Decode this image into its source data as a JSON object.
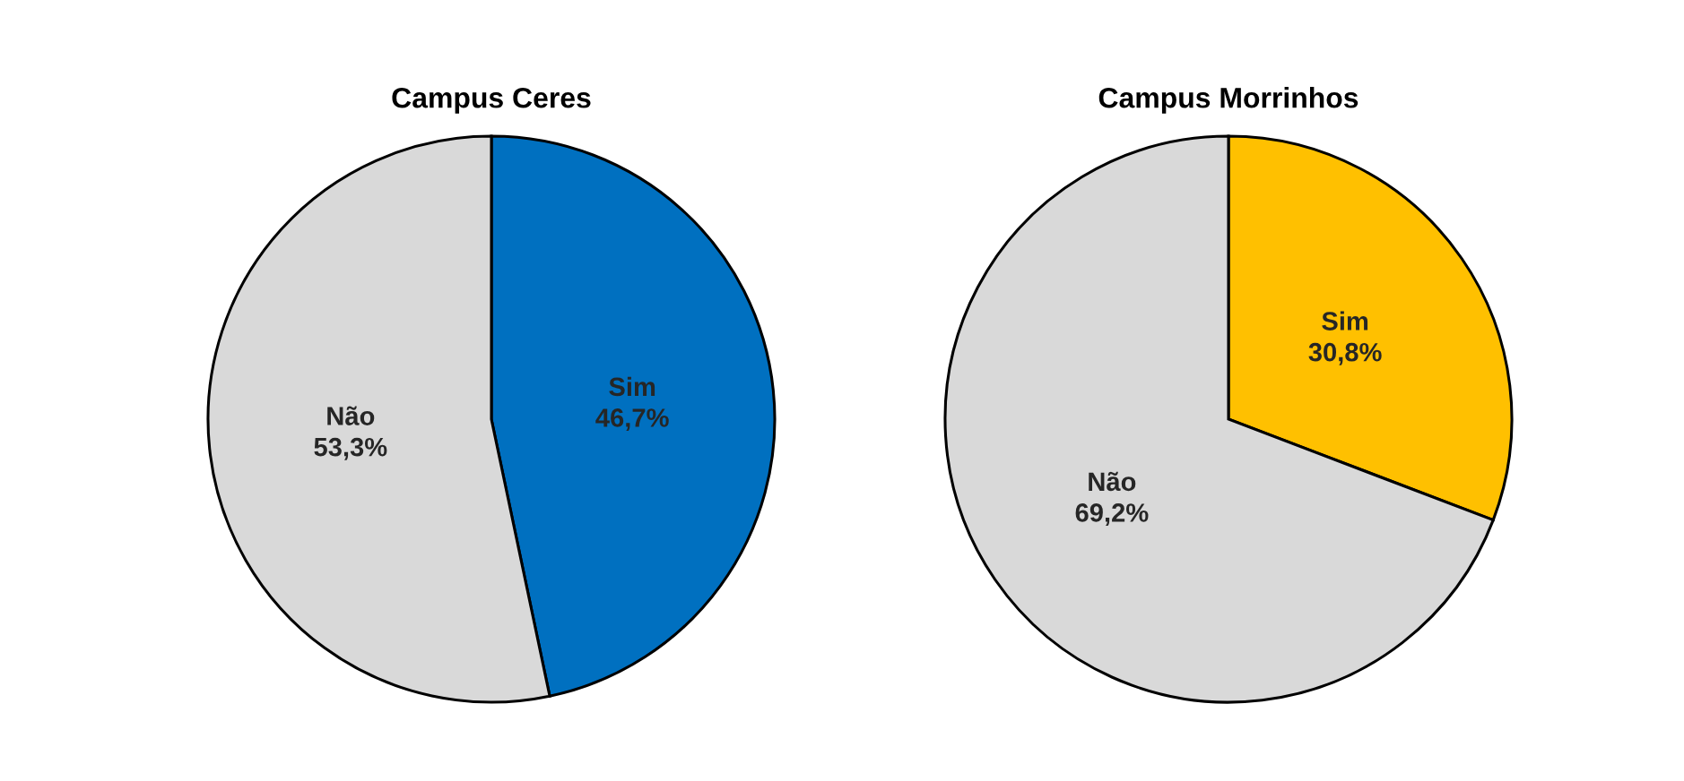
{
  "chart_data": [
    {
      "type": "pie",
      "title": "Campus Ceres",
      "categories": [
        "Sim",
        "Não"
      ],
      "values": [
        46.7,
        53.3
      ],
      "colors": [
        "#0070c0",
        "#d9d9d9"
      ],
      "value_labels": [
        "46,7%",
        "53,3%"
      ]
    },
    {
      "type": "pie",
      "title": "Campus Morrinhos",
      "categories": [
        "Sim",
        "Não"
      ],
      "values": [
        30.8,
        69.2
      ],
      "colors": [
        "#ffc000",
        "#d9d9d9"
      ],
      "value_labels": [
        "30,8%",
        "69,2%"
      ]
    }
  ]
}
